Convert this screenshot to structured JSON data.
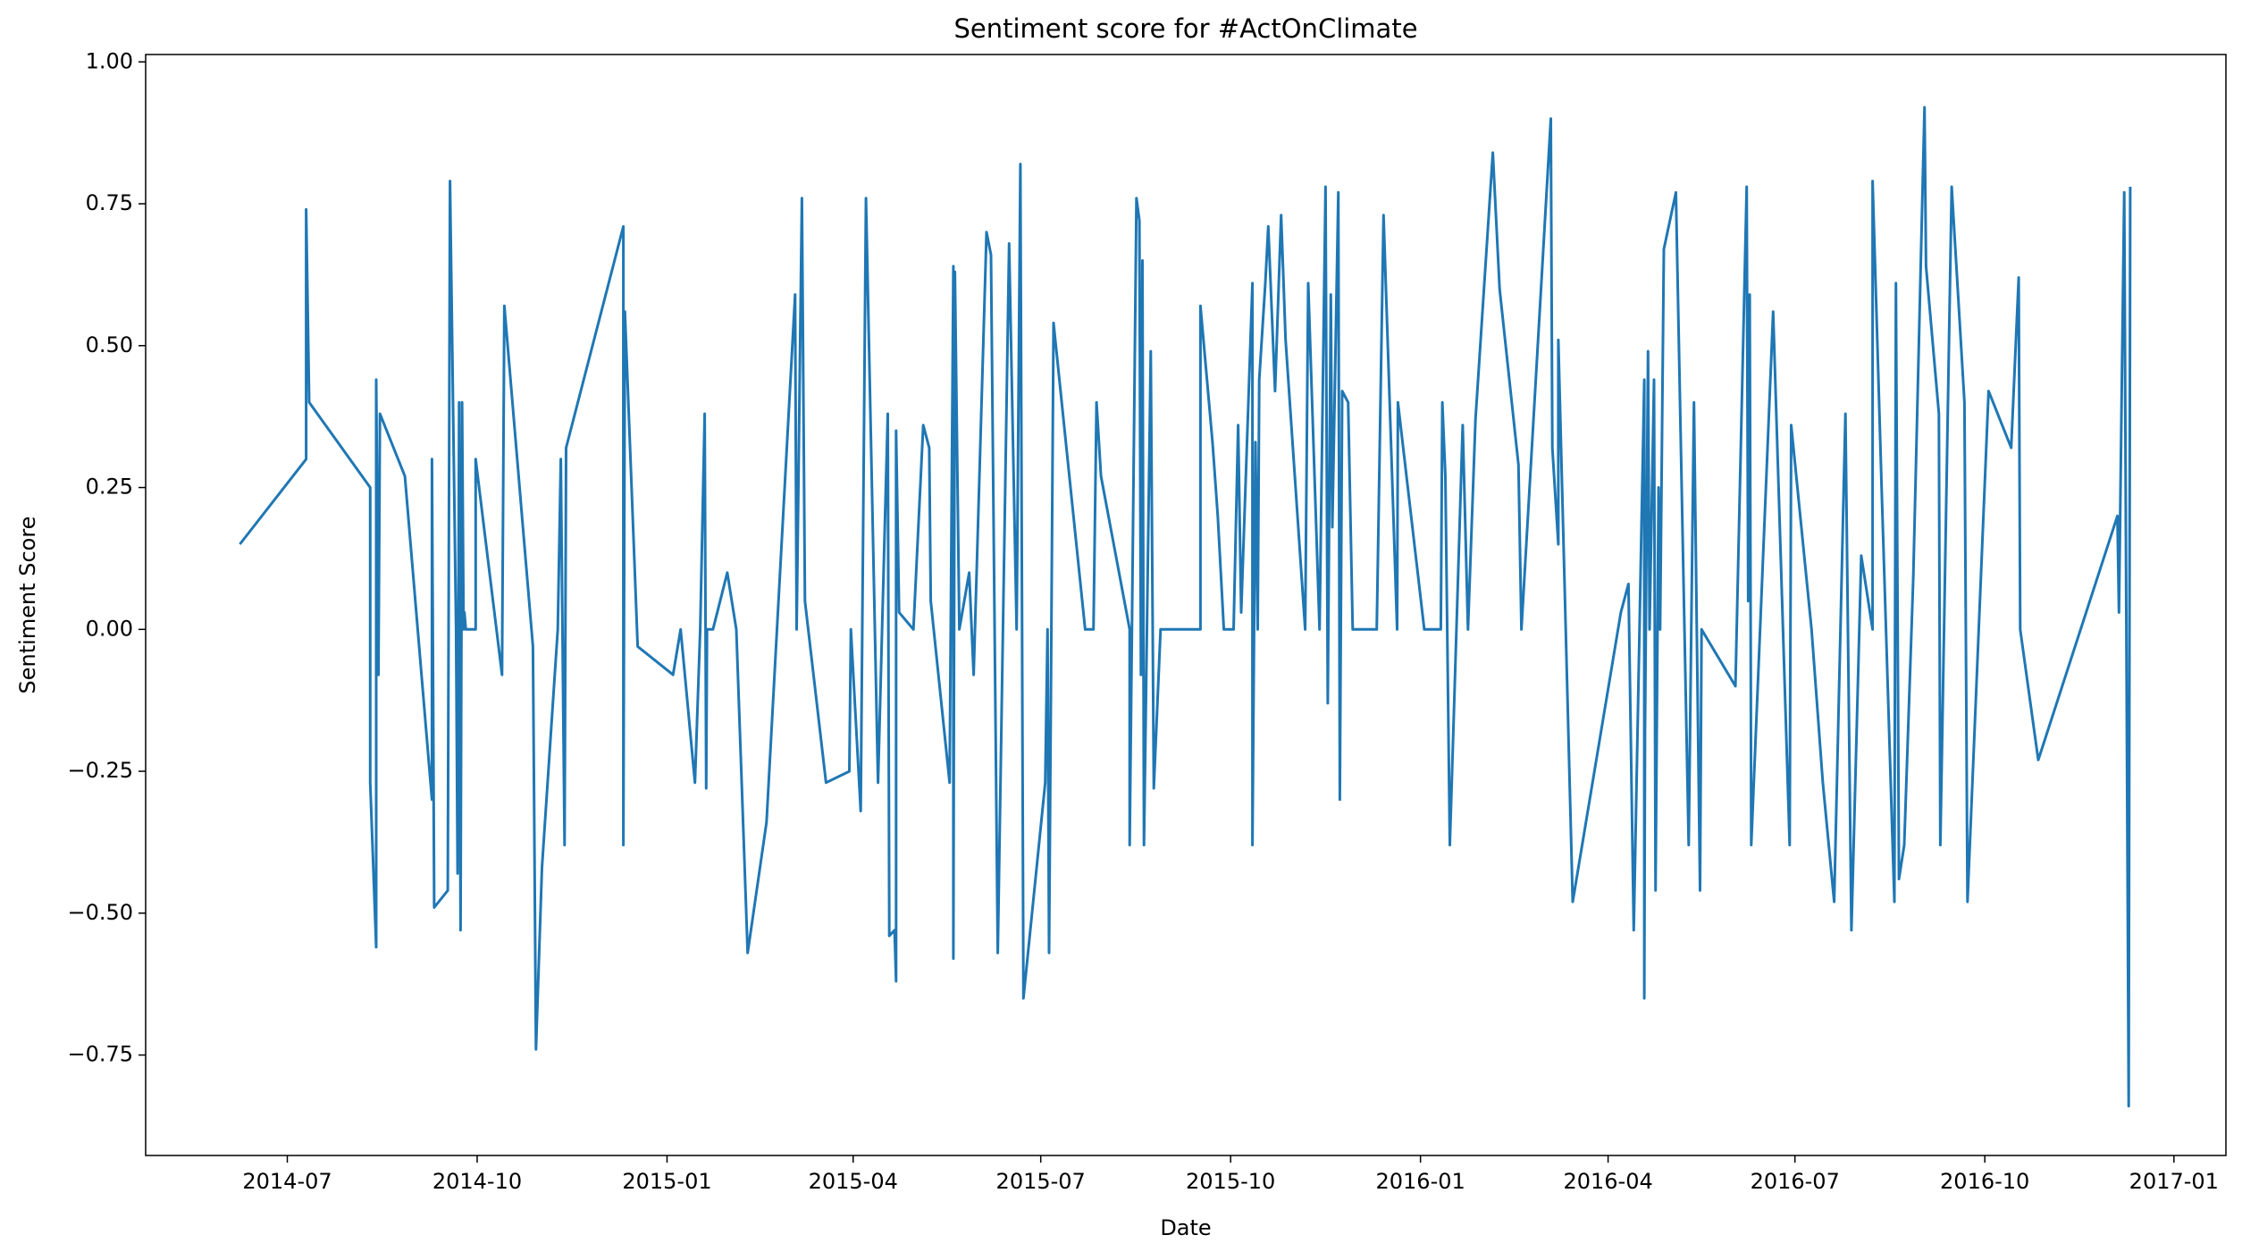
{
  "chart_data": {
    "type": "line",
    "title": "Sentiment score for #ActOnClimate",
    "x_label": "Date",
    "y_label": "Sentiment Score",
    "color": "#1f77b4",
    "x": [
      2014.433,
      2014.521,
      2014.521,
      2014.525,
      2014.606,
      2014.606,
      2014.614,
      2014.614,
      2014.617,
      2014.619,
      2014.652,
      2014.688,
      2014.688,
      2014.691,
      2014.709,
      2014.71,
      2014.712,
      2014.72,
      2014.722,
      2014.724,
      2014.726,
      2014.728,
      2014.73,
      2014.731,
      2014.733,
      2014.746,
      2014.746,
      2014.781,
      2014.784,
      2014.822,
      2014.826,
      2014.834,
      2014.855,
      2014.859,
      2014.864,
      2014.866,
      2014.942,
      2014.942,
      2014.944,
      2014.961,
      2015.008,
      2015.018,
      2015.037,
      2015.044,
      2015.05,
      2015.052,
      2015.053,
      2015.061,
      2015.08,
      2015.092,
      2015.107,
      2015.132,
      2015.17,
      2015.172,
      2015.179,
      2015.183,
      2015.211,
      2015.242,
      2015.244,
      2015.257,
      2015.264,
      2015.28,
      2015.293,
      2015.295,
      2015.302,
      2015.304,
      2015.304,
      2015.308,
      2015.327,
      2015.34,
      2015.348,
      2015.35,
      2015.375,
      2015.38,
      2015.38,
      2015.382,
      2015.388,
      2015.401,
      2015.407,
      2015.424,
      2015.43,
      2015.439,
      2015.454,
      2015.464,
      2015.469,
      2015.473,
      2015.502,
      2015.505,
      2015.507,
      2015.513,
      2015.555,
      2015.566,
      2015.57,
      2015.576,
      2015.614,
      2015.614,
      2015.623,
      2015.627,
      2015.629,
      2015.631,
      2015.633,
      2015.642,
      2015.646,
      2015.655,
      2015.708,
      2015.708,
      2015.724,
      2015.731,
      2015.739,
      2015.752,
      2015.758,
      2015.762,
      2015.777,
      2015.777,
      2015.781,
      2015.784,
      2015.786,
      2015.794,
      2015.798,
      2015.807,
      2015.815,
      2015.821,
      2015.847,
      2015.851,
      2015.866,
      2015.874,
      2015.877,
      2015.881,
      2015.883,
      2015.891,
      2015.893,
      2015.896,
      2015.904,
      2015.91,
      2015.942,
      2015.951,
      2015.969,
      2015.97,
      2016.005,
      2016.027,
      2016.029,
      2016.033,
      2016.039,
      2016.056,
      2016.063,
      2016.073,
      2016.096,
      2016.105,
      2016.13,
      2016.134,
      2016.173,
      2016.175,
      2016.183,
      2016.183,
      2016.202,
      2016.266,
      2016.276,
      2016.283,
      2016.297,
      2016.297,
      2016.298,
      2016.302,
      2016.304,
      2016.31,
      2016.312,
      2016.316,
      2016.318,
      2016.323,
      2016.339,
      2016.356,
      2016.363,
      2016.371,
      2016.373,
      2016.418,
      2016.433,
      2016.435,
      2016.437,
      2016.439,
      2016.468,
      2016.49,
      2016.492,
      2016.519,
      2016.534,
      2016.549,
      2016.564,
      2016.572,
      2016.585,
      2016.6,
      2016.6,
      2016.612,
      2016.629,
      2016.631,
      2016.635,
      2016.642,
      2016.654,
      2016.669,
      2016.671,
      2016.688,
      2016.69,
      2016.705,
      2016.722,
      2016.726,
      2016.754,
      2016.784,
      2016.794,
      2016.796,
      2016.82,
      2016.925,
      2016.927,
      2016.934,
      2016.94,
      2016.942
    ],
    "values": [
      0.15,
      0.3,
      0.74,
      0.4,
      0.25,
      -0.27,
      -0.56,
      0.44,
      -0.08,
      0.38,
      0.27,
      -0.3,
      0.3,
      -0.49,
      -0.46,
      0.0,
      0.79,
      0.0,
      -0.43,
      0.4,
      -0.53,
      0.4,
      0.0,
      0.03,
      0.0,
      0.0,
      0.3,
      -0.08,
      0.57,
      -0.03,
      -0.74,
      -0.42,
      0.0,
      0.3,
      -0.38,
      0.32,
      0.71,
      -0.38,
      0.56,
      -0.03,
      -0.08,
      0.0,
      -0.27,
      0.0,
      0.38,
      -0.28,
      0.0,
      0.0,
      0.1,
      0.0,
      -0.57,
      -0.34,
      0.59,
      0.0,
      0.76,
      0.05,
      -0.27,
      -0.25,
      0.0,
      -0.32,
      0.76,
      -0.27,
      0.38,
      -0.54,
      -0.53,
      -0.62,
      0.35,
      0.03,
      0.0,
      0.36,
      0.32,
      0.05,
      -0.27,
      0.64,
      -0.58,
      0.63,
      0.0,
      0.1,
      -0.08,
      0.7,
      0.66,
      -0.57,
      0.68,
      0.0,
      0.82,
      -0.65,
      -0.27,
      0.0,
      -0.57,
      0.54,
      0.0,
      0.0,
      0.4,
      0.27,
      0.0,
      -0.38,
      0.76,
      0.72,
      -0.08,
      0.65,
      -0.38,
      0.49,
      -0.28,
      0.0,
      0.0,
      0.57,
      0.33,
      0.2,
      0.0,
      0.0,
      0.36,
      0.03,
      0.61,
      -0.38,
      0.33,
      0.0,
      0.44,
      0.61,
      0.71,
      0.42,
      0.73,
      0.51,
      0.0,
      0.61,
      0.0,
      0.78,
      -0.13,
      0.59,
      0.18,
      0.77,
      -0.3,
      0.42,
      0.4,
      0.0,
      0.0,
      0.73,
      0.0,
      0.4,
      0.0,
      0.0,
      0.4,
      0.27,
      -0.38,
      0.36,
      0.0,
      0.37,
      0.84,
      0.6,
      0.29,
      0.0,
      0.9,
      0.32,
      0.15,
      0.51,
      -0.48,
      0.03,
      0.08,
      -0.53,
      0.44,
      -0.65,
      -0.18,
      0.49,
      0.0,
      0.44,
      -0.46,
      0.25,
      0.0,
      0.67,
      0.77,
      -0.38,
      0.4,
      -0.46,
      0.0,
      -0.1,
      0.78,
      0.05,
      0.59,
      -0.38,
      0.56,
      -0.38,
      0.36,
      0.0,
      -0.27,
      -0.48,
      0.38,
      -0.53,
      0.13,
      0.0,
      0.79,
      0.25,
      -0.48,
      0.61,
      -0.44,
      -0.38,
      0.09,
      0.92,
      0.64,
      0.38,
      -0.38,
      0.78,
      0.4,
      -0.48,
      0.42,
      0.32,
      0.62,
      0.0,
      -0.23,
      0.2,
      0.03,
      0.77,
      -0.84,
      0.78
    ],
    "xlim": [
      2014.308,
      2017.069
    ],
    "ylim": [
      -0.927,
      1.013
    ],
    "xticks": [
      {
        "value": 2014.496,
        "label": "2014-07"
      },
      {
        "value": 2014.748,
        "label": "2014-10"
      },
      {
        "value": 2015.0,
        "label": "2015-01"
      },
      {
        "value": 2015.247,
        "label": "2015-04"
      },
      {
        "value": 2015.496,
        "label": "2015-07"
      },
      {
        "value": 2015.748,
        "label": "2015-10"
      },
      {
        "value": 2016.0,
        "label": "2016-01"
      },
      {
        "value": 2016.249,
        "label": "2016-04"
      },
      {
        "value": 2016.497,
        "label": "2016-07"
      },
      {
        "value": 2016.749,
        "label": "2016-10"
      },
      {
        "value": 2017.0,
        "label": "2017-01"
      }
    ],
    "yticks": [
      {
        "value": -0.75,
        "label": "−0.75"
      },
      {
        "value": -0.5,
        "label": "−0.50"
      },
      {
        "value": -0.25,
        "label": "−0.25"
      },
      {
        "value": 0,
        "label": "0.00"
      },
      {
        "value": 0.25,
        "label": "0.25"
      },
      {
        "value": 0.5,
        "label": "0.50"
      },
      {
        "value": 0.75,
        "label": "0.75"
      },
      {
        "value": 1,
        "label": "1.00"
      }
    ]
  }
}
